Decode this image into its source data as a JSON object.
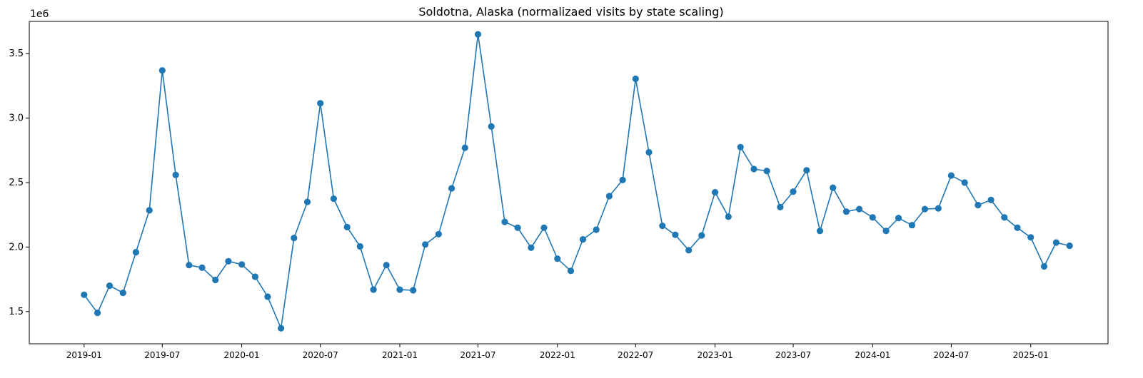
{
  "chart_data": {
    "type": "line",
    "title": "Soldotna, Alaska (normalizaed visits by state scaling)",
    "xlabel": "",
    "ylabel": "",
    "y_offset_label": "1e6",
    "ylim": [
      1250000,
      3750000
    ],
    "xlim": [
      "2018-08-27",
      "2025-06-29"
    ],
    "x_ticks": [
      "2019-01",
      "2019-07",
      "2020-01",
      "2020-07",
      "2021-01",
      "2021-07",
      "2022-01",
      "2022-07",
      "2023-01",
      "2023-07",
      "2024-01",
      "2024-07",
      "2025-01"
    ],
    "y_ticks": [
      1500000,
      2000000,
      2500000,
      3000000,
      3500000
    ],
    "y_tick_labels": [
      "1.5",
      "2.0",
      "2.5",
      "3.0",
      "3.5"
    ],
    "grid": false,
    "legend": "none",
    "color": "#1f77b4",
    "series": [
      {
        "x": [
          "2019-01-01",
          "2019-02-01",
          "2019-03-01",
          "2019-04-01",
          "2019-05-01",
          "2019-06-01",
          "2019-07-01",
          "2019-08-01",
          "2019-09-01",
          "2019-10-01",
          "2019-11-01",
          "2019-12-01",
          "2020-01-01",
          "2020-02-01",
          "2020-03-01",
          "2020-04-01",
          "2020-05-01",
          "2020-06-01",
          "2020-07-01",
          "2020-08-01",
          "2020-09-01",
          "2020-10-01",
          "2020-11-01",
          "2020-12-01",
          "2021-01-01",
          "2021-02-01",
          "2021-03-01",
          "2021-04-01",
          "2021-05-01",
          "2021-06-01",
          "2021-07-01",
          "2021-08-01",
          "2021-09-01",
          "2021-10-01",
          "2021-11-01",
          "2021-12-01",
          "2022-01-01",
          "2022-02-01",
          "2022-03-01",
          "2022-04-01",
          "2022-05-01",
          "2022-06-01",
          "2022-07-01",
          "2022-08-01",
          "2022-09-01",
          "2022-10-01",
          "2022-11-01",
          "2022-12-01",
          "2023-01-01",
          "2023-02-01",
          "2023-03-01",
          "2023-04-01",
          "2023-05-01",
          "2023-06-01",
          "2023-07-01",
          "2023-08-01",
          "2023-09-01",
          "2023-10-01",
          "2023-11-01",
          "2023-12-01",
          "2024-01-01",
          "2024-02-01",
          "2024-03-01",
          "2024-04-01",
          "2024-05-01",
          "2024-06-01",
          "2024-07-01",
          "2024-08-01",
          "2024-09-01",
          "2024-10-01",
          "2024-11-01",
          "2024-12-01",
          "2025-01-01",
          "2025-02-01",
          "2025-03-01",
          "2025-04-01"
        ],
        "y": [
          1630000,
          1490000,
          1700000,
          1645000,
          1960000,
          2285000,
          3370000,
          2560000,
          1860000,
          1840000,
          1745000,
          1890000,
          1865000,
          1770000,
          1615000,
          1370000,
          2070000,
          2350000,
          3115000,
          2375000,
          2155000,
          2005000,
          1670000,
          1860000,
          1670000,
          1665000,
          2020000,
          2100000,
          2455000,
          2770000,
          3650000,
          2935000,
          2195000,
          2150000,
          1995000,
          2150000,
          1910000,
          1815000,
          2060000,
          2135000,
          2395000,
          2520000,
          3305000,
          2735000,
          2165000,
          2095000,
          1975000,
          2090000,
          2425000,
          2235000,
          2775000,
          2605000,
          2590000,
          2310000,
          2430000,
          2595000,
          2125000,
          2460000,
          2275000,
          2295000,
          2230000,
          2125000,
          2225000,
          2170000,
          2295000,
          2300000,
          2555000,
          2500000,
          2325000,
          2365000,
          2230000,
          2150000,
          2075000,
          1850000,
          2035000,
          2010000
        ]
      }
    ]
  }
}
